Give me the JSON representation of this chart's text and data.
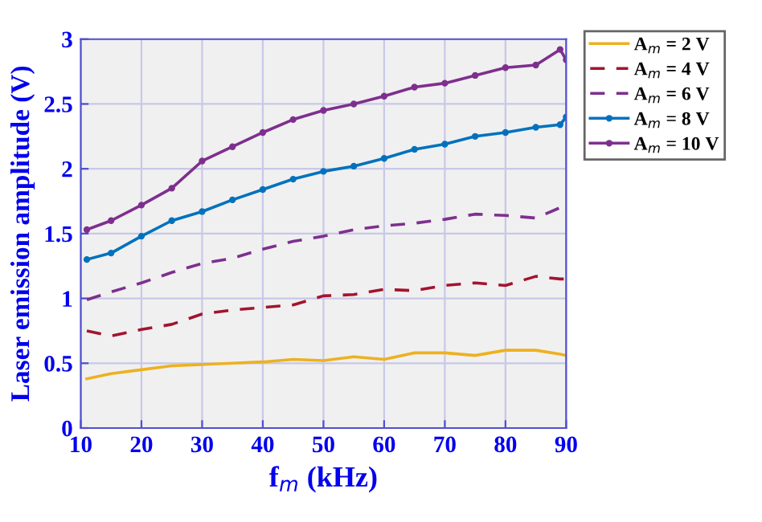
{
  "chart_data": {
    "type": "line",
    "xlabel": "f$_{m}$ (kHz)",
    "ylabel": "Laser emission amplitude (V)",
    "xlim": [
      10,
      90
    ],
    "xticks": [
      10,
      20,
      30,
      40,
      50,
      60,
      70,
      80,
      90
    ],
    "ylim": [
      0,
      3
    ],
    "yticks": [
      0,
      0.5,
      1,
      1.5,
      2,
      2.5,
      3
    ],
    "grid": true,
    "legend": "right",
    "marker": "none",
    "x": [
      11,
      15,
      20,
      25,
      30,
      35,
      40,
      45,
      50,
      55,
      60,
      65,
      70,
      75,
      80,
      85,
      89,
      90
    ],
    "series": [
      {
        "name": "A$_{m}$ = 2 V",
        "color": "#edb120",
        "line_style": "solid",
        "values": [
          0.38,
          0.42,
          0.45,
          0.48,
          0.49,
          0.5,
          0.51,
          0.53,
          0.52,
          0.55,
          0.53,
          0.58,
          0.58,
          0.56,
          0.6,
          0.6,
          0.57,
          0.56
        ]
      },
      {
        "name": "A$_{m}$ = 4 V",
        "color": "#a2142f",
        "line_style": "dashed",
        "values": [
          0.75,
          0.71,
          0.76,
          0.8,
          0.88,
          0.91,
          0.93,
          0.95,
          1.02,
          1.03,
          1.07,
          1.06,
          1.1,
          1.12,
          1.1,
          1.17,
          1.15,
          1.15
        ]
      },
      {
        "name": "A$_{m}$ = 6 V",
        "color": "#7e2f8e",
        "line_style": "dashed",
        "values": [
          0.99,
          1.05,
          1.12,
          1.2,
          1.27,
          1.31,
          1.38,
          1.44,
          1.48,
          1.53,
          1.56,
          1.58,
          1.61,
          1.65,
          1.64,
          1.62,
          1.7,
          1.72
        ]
      },
      {
        "name": "A$_{m}$ = 8 V",
        "color": "#0072bd",
        "line_style": "solid",
        "marker": "circle",
        "values": [
          1.3,
          1.35,
          1.48,
          1.6,
          1.67,
          1.76,
          1.84,
          1.92,
          1.98,
          2.02,
          2.08,
          2.15,
          2.19,
          2.25,
          2.28,
          2.32,
          2.34,
          2.4
        ]
      },
      {
        "name": "A$_{m}$ = 10 V",
        "color": "#7e2f8e",
        "line_style": "solid",
        "marker": "circle",
        "values": [
          1.53,
          1.6,
          1.72,
          1.85,
          2.06,
          2.17,
          2.28,
          2.38,
          2.45,
          2.5,
          2.56,
          2.63,
          2.66,
          2.72,
          2.78,
          2.8,
          2.92,
          2.84
        ]
      }
    ]
  }
}
